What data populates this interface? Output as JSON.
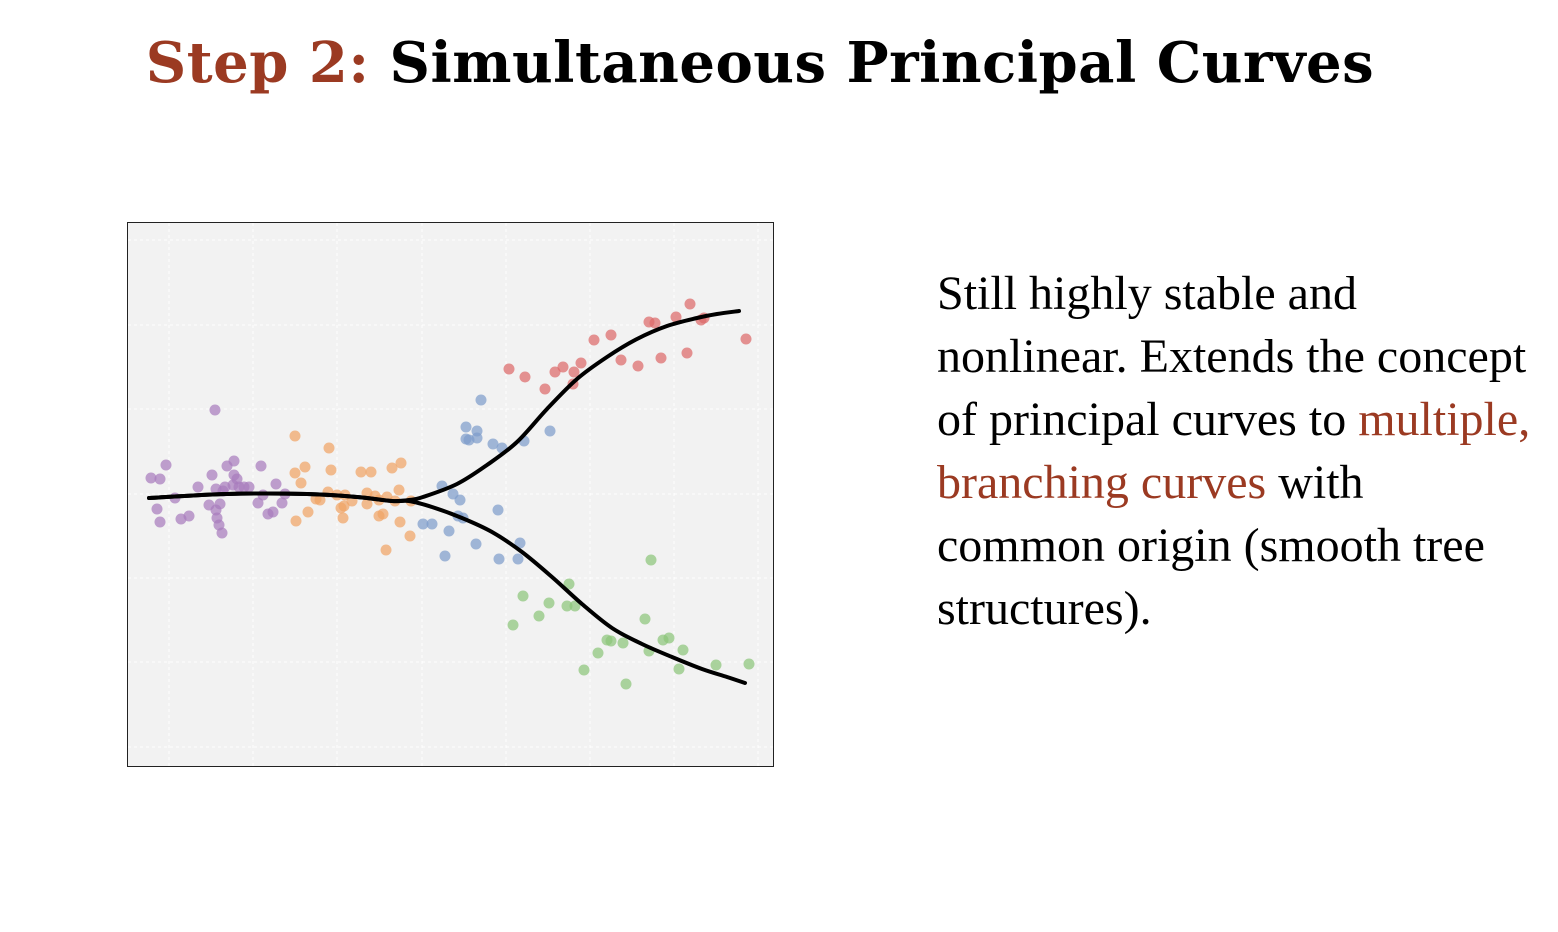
{
  "title": {
    "prefix": "Step 2:",
    "main": "Simultaneous Principal Curves"
  },
  "body": {
    "text_before": "Still highly stable and nonlinear. Extends the concept of principal curves to ",
    "highlight": "multiple, branching curves",
    "text_after": " with common origin (smooth tree structures)."
  },
  "colors": {
    "accent": "#9b3a22",
    "panel_bg": "#f2f2f2",
    "grid": "#ffffff",
    "curve": "#000000",
    "cluster_purple": "#a77bbd",
    "cluster_orange": "#f0a365",
    "cluster_blue": "#7e9dcb",
    "cluster_red": "#dd6a6a",
    "cluster_green": "#8cc57a"
  },
  "chart_data": {
    "type": "scatter",
    "xlim": [
      0,
      647
    ],
    "ylim": [
      0,
      545
    ],
    "grid": true,
    "series": [
      {
        "color": "#a77bbd",
        "points": [
          [
            24,
            256
          ],
          [
            33,
            257
          ],
          [
            39,
            243
          ],
          [
            30,
            287
          ],
          [
            33,
            300
          ],
          [
            48,
            276
          ],
          [
            54,
            297
          ],
          [
            62,
            294
          ],
          [
            71,
            265
          ],
          [
            82,
            283
          ],
          [
            89,
            267
          ],
          [
            85,
            253
          ],
          [
            93,
            282
          ],
          [
            98,
            265
          ],
          [
            96,
            269
          ],
          [
            100,
            244
          ],
          [
            107,
            239
          ],
          [
            107,
            253
          ],
          [
            110,
            257
          ],
          [
            112,
            265
          ],
          [
            117,
            265
          ],
          [
            122,
            265
          ],
          [
            131,
            281
          ],
          [
            134,
            244
          ],
          [
            136,
            273
          ],
          [
            141,
            292
          ],
          [
            146,
            290
          ],
          [
            149,
            262
          ],
          [
            155,
            281
          ],
          [
            158,
            272
          ],
          [
            92,
            303
          ],
          [
            95,
            311
          ],
          [
            89,
            288
          ],
          [
            90,
            296
          ],
          [
            88,
            188
          ],
          [
            106,
            263
          ]
        ]
      },
      {
        "color": "#f0a365",
        "points": [
          [
            168,
            214
          ],
          [
            168,
            251
          ],
          [
            174,
            261
          ],
          [
            178,
            245
          ],
          [
            169,
            299
          ],
          [
            181,
            290
          ],
          [
            189,
            277
          ],
          [
            193,
            278
          ],
          [
            201,
            270
          ],
          [
            202,
            226
          ],
          [
            204,
            248
          ],
          [
            210,
            273
          ],
          [
            214,
            286
          ],
          [
            216,
            296
          ],
          [
            217,
            284
          ],
          [
            218,
            273
          ],
          [
            225,
            279
          ],
          [
            234,
            250
          ],
          [
            240,
            282
          ],
          [
            240,
            271
          ],
          [
            244,
            250
          ],
          [
            248,
            274
          ],
          [
            252,
            278
          ],
          [
            252,
            294
          ],
          [
            256,
            292
          ],
          [
            260,
            275
          ],
          [
            265,
            246
          ],
          [
            268,
            279
          ],
          [
            272,
            268
          ],
          [
            274,
            241
          ],
          [
            273,
            300
          ],
          [
            259,
            328
          ],
          [
            283,
            314
          ],
          [
            284,
            279
          ]
        ]
      },
      {
        "color": "#7e9dcb",
        "points": [
          [
            315,
            264
          ],
          [
            326,
            272
          ],
          [
            333,
            278
          ],
          [
            331,
            294
          ],
          [
            336,
            296
          ],
          [
            305,
            302
          ],
          [
            322,
            309
          ],
          [
            296,
            302
          ],
          [
            339,
            205
          ],
          [
            339,
            217
          ],
          [
            350,
            209
          ],
          [
            350,
            216
          ],
          [
            342,
            218
          ],
          [
            354,
            178
          ],
          [
            366,
            222
          ],
          [
            375,
            226
          ],
          [
            397,
            219
          ],
          [
            423,
            209
          ],
          [
            371,
            288
          ],
          [
            349,
            322
          ],
          [
            372,
            337
          ],
          [
            391,
            337
          ],
          [
            393,
            321
          ],
          [
            318,
            334
          ]
        ]
      },
      {
        "color": "#dd6a6a",
        "points": [
          [
            382,
            147
          ],
          [
            398,
            155
          ],
          [
            418,
            167
          ],
          [
            428,
            150
          ],
          [
            436,
            145
          ],
          [
            446,
            162
          ],
          [
            454,
            141
          ],
          [
            447,
            150
          ],
          [
            467,
            118
          ],
          [
            484,
            113
          ],
          [
            494,
            138
          ],
          [
            511,
            144
          ],
          [
            522,
            100
          ],
          [
            528,
            101
          ],
          [
            534,
            136
          ],
          [
            549,
            95
          ],
          [
            563,
            82
          ],
          [
            574,
            98
          ],
          [
            577,
            96
          ],
          [
            560,
            131
          ],
          [
            619,
            117
          ]
        ]
      },
      {
        "color": "#8cc57a",
        "points": [
          [
            396,
            374
          ],
          [
            386,
            403
          ],
          [
            412,
            394
          ],
          [
            422,
            381
          ],
          [
            440,
            384
          ],
          [
            442,
            362
          ],
          [
            448,
            384
          ],
          [
            457,
            448
          ],
          [
            471,
            431
          ],
          [
            480,
            418
          ],
          [
            484,
            419
          ],
          [
            496,
            421
          ],
          [
            499,
            462
          ],
          [
            518,
            397
          ],
          [
            524,
            338
          ],
          [
            522,
            429
          ],
          [
            536,
            418
          ],
          [
            542,
            416
          ],
          [
            552,
            447
          ],
          [
            556,
            428
          ],
          [
            589,
            443
          ],
          [
            622,
            442
          ]
        ]
      }
    ],
    "curves": [
      [
        [
          22,
          276
        ],
        [
          100,
          272
        ],
        [
          180,
          272
        ],
        [
          230,
          275
        ],
        [
          265,
          279
        ],
        [
          282,
          278
        ],
        [
          296,
          275
        ],
        [
          330,
          262
        ],
        [
          360,
          243
        ],
        [
          390,
          220
        ],
        [
          420,
          187
        ],
        [
          450,
          157
        ],
        [
          480,
          135
        ],
        [
          510,
          117
        ],
        [
          540,
          104
        ],
        [
          570,
          96
        ],
        [
          590,
          92
        ],
        [
          612,
          89
        ]
      ],
      [
        [
          22,
          276
        ],
        [
          100,
          272
        ],
        [
          180,
          272
        ],
        [
          230,
          275
        ],
        [
          265,
          279
        ],
        [
          282,
          279
        ],
        [
          305,
          285
        ],
        [
          335,
          296
        ],
        [
          365,
          310
        ],
        [
          395,
          330
        ],
        [
          425,
          355
        ],
        [
          455,
          382
        ],
        [
          485,
          406
        ],
        [
          515,
          422
        ],
        [
          545,
          435
        ],
        [
          575,
          447
        ],
        [
          600,
          455
        ],
        [
          618,
          461
        ]
      ]
    ]
  }
}
